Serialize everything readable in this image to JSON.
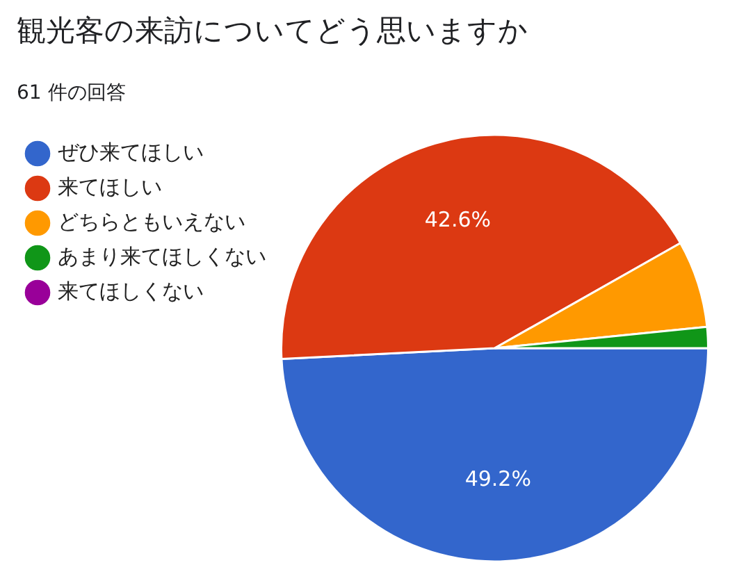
{
  "chart_data": {
    "type": "pie",
    "title": "観光客の来訪についてどう思いますか",
    "subtitle": "61 件の回答",
    "categories": [
      "ぜひ来てほしい",
      "来てほしい",
      "どちらともいえない",
      "あまり来てほしくない",
      "来てほしくない"
    ],
    "values": [
      49.2,
      42.6,
      6.6,
      1.6,
      0
    ],
    "colors": [
      "#3366cc",
      "#dc3912",
      "#ff9900",
      "#109618",
      "#990099"
    ],
    "value_labels": [
      "49.2%",
      "42.6%",
      null,
      null,
      null
    ],
    "legend": "top left"
  }
}
